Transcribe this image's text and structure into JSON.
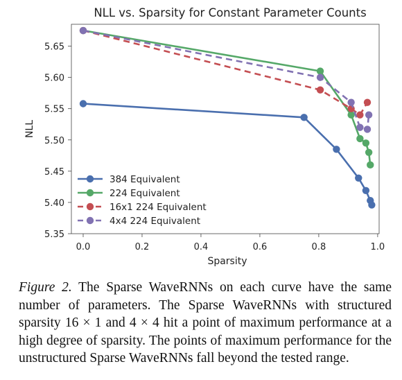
{
  "chart_data": {
    "type": "line",
    "title": "NLL vs. Sparsity for Constant Parameter Counts",
    "xlabel": "Sparsity",
    "ylabel": "NLL",
    "xlim": [
      -0.04,
      1.005
    ],
    "ylim": [
      5.35,
      5.685
    ],
    "xticks": [
      0.0,
      0.2,
      0.4,
      0.6,
      0.8,
      1.0
    ],
    "xtick_labels": [
      "0.0",
      "0.2",
      "0.4",
      "0.6",
      "0.8",
      "1.0"
    ],
    "yticks": [
      5.35,
      5.4,
      5.45,
      5.5,
      5.55,
      5.6,
      5.65
    ],
    "ytick_labels": [
      "5.35",
      "5.40",
      "5.45",
      "5.50",
      "5.55",
      "5.60",
      "5.65"
    ],
    "grid": false,
    "legend_position": "lower-left",
    "series": [
      {
        "name": "384 Equivalent",
        "color": "#4a6fae",
        "dash": false,
        "x": [
          0.0,
          0.75,
          0.86,
          0.935,
          0.96,
          0.975,
          0.98
        ],
        "y": [
          5.558,
          5.536,
          5.485,
          5.439,
          5.419,
          5.403,
          5.396
        ]
      },
      {
        "name": "224 Equivalent",
        "color": "#55a868",
        "dash": false,
        "x": [
          0.0,
          0.805,
          0.91,
          0.94,
          0.96,
          0.97,
          0.975
        ],
        "y": [
          5.675,
          5.61,
          5.54,
          5.502,
          5.495,
          5.48,
          5.46
        ]
      },
      {
        "name": "16x1 224 Equivalent",
        "color": "#c44e52",
        "dash": true,
        "x": [
          0.0,
          0.805,
          0.91,
          0.94,
          0.965
        ],
        "y": [
          5.675,
          5.58,
          5.55,
          5.54,
          5.56
        ]
      },
      {
        "name": "4x4 224 Equivalent",
        "color": "#8172b2",
        "dash": true,
        "x": [
          0.0,
          0.805,
          0.91,
          0.94,
          0.965,
          0.97
        ],
        "y": [
          5.675,
          5.6,
          5.56,
          5.52,
          5.517,
          5.54
        ]
      }
    ]
  },
  "caption": {
    "label": "Figure 2.",
    "text": " The Sparse WaveRNNs on each curve have the same number of parameters.  The Sparse WaveRNNs with structured sparsity 16 × 1 and 4 × 4 hit a point of maximum performance at a high degree of sparsity. The points of maximum performance for the unstructured Sparse WaveRNNs fall beyond the tested range."
  }
}
